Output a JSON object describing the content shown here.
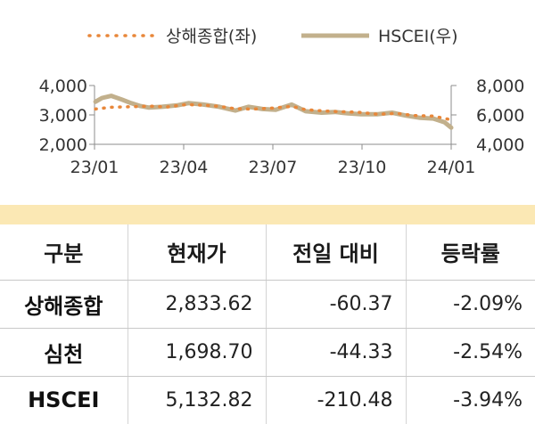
{
  "chart_data": {
    "type": "line",
    "legend": [
      "상해종합(좌)",
      "HSCEI(우)"
    ],
    "legend_position": "top",
    "x_ticks": [
      "23/01",
      "23/04",
      "23/07",
      "23/10",
      "24/01"
    ],
    "x_range": [
      "2023-01-02",
      "2024-01-17"
    ],
    "y_left": {
      "ticks": [
        "4,000",
        "3,000",
        "2,000"
      ],
      "ylim": [
        2000,
        4000
      ]
    },
    "y_right": {
      "ticks": [
        "8,000",
        "6,000",
        "4,000"
      ],
      "ylim": [
        4000,
        8000
      ]
    },
    "grid": false,
    "series": [
      {
        "name": "상해종합(좌)",
        "axis": "left",
        "style": "dotted",
        "color": "#e8873a",
        "dates": [
          "2023-01-03",
          "2023-01-20",
          "2023-02-10",
          "2023-03-01",
          "2023-03-20",
          "2023-04-10",
          "2023-04-28",
          "2023-05-15",
          "2023-06-01",
          "2023-06-20",
          "2023-07-10",
          "2023-07-31",
          "2023-08-15",
          "2023-09-01",
          "2023-09-20",
          "2023-10-10",
          "2023-10-31",
          "2023-11-20",
          "2023-12-08",
          "2023-12-29",
          "2024-01-17"
        ],
        "values": [
          3200,
          3260,
          3280,
          3300,
          3270,
          3350,
          3330,
          3290,
          3210,
          3200,
          3230,
          3290,
          3180,
          3140,
          3110,
          3090,
          3020,
          3050,
          2980,
          2960,
          2834
        ]
      },
      {
        "name": "HSCEI(우)",
        "axis": "right",
        "style": "solid",
        "color": "#c2b08c",
        "dates": [
          "2023-01-03",
          "2023-01-10",
          "2023-01-20",
          "2023-01-31",
          "2023-02-10",
          "2023-02-20",
          "2023-03-01",
          "2023-03-15",
          "2023-03-31",
          "2023-04-12",
          "2023-04-28",
          "2023-05-15",
          "2023-06-01",
          "2023-06-15",
          "2023-06-30",
          "2023-07-14",
          "2023-07-31",
          "2023-08-15",
          "2023-09-01",
          "2023-09-15",
          "2023-09-29",
          "2023-10-13",
          "2023-10-31",
          "2023-11-15",
          "2023-11-30",
          "2023-12-15",
          "2023-12-29",
          "2024-01-10",
          "2024-01-17"
        ],
        "values": [
          6900,
          7150,
          7300,
          7050,
          6800,
          6600,
          6500,
          6550,
          6650,
          6800,
          6700,
          6550,
          6300,
          6550,
          6400,
          6350,
          6700,
          6250,
          6150,
          6200,
          6100,
          6050,
          6050,
          6150,
          5950,
          5800,
          5750,
          5500,
          5133
        ]
      }
    ]
  },
  "table": {
    "headers": [
      "구분",
      "현재가",
      "전일 대비",
      "등락률"
    ],
    "rows": [
      [
        "상해종합",
        "2,833.62",
        "-60.37",
        "-2.09%"
      ],
      [
        "심천",
        "1,698.70",
        "-44.33",
        "-2.54%"
      ],
      [
        "HSCEI",
        "5,132.82",
        "-210.48",
        "-3.94%"
      ]
    ]
  },
  "colors": {
    "band": "#fbe8b4",
    "axis": "#8c8c8c"
  }
}
